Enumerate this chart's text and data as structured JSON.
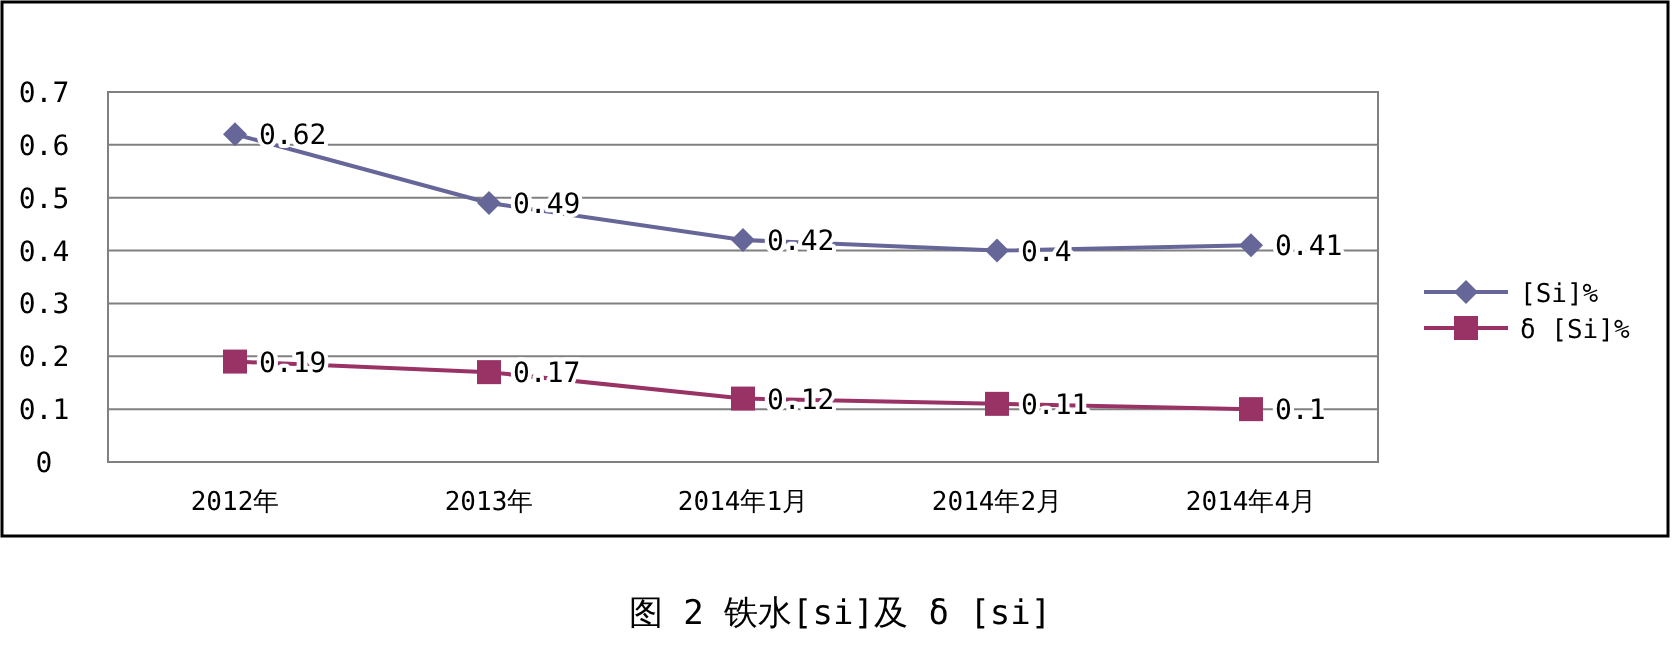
{
  "chart_data": {
    "type": "line",
    "categories": [
      "2012年",
      "2013年",
      "2014年1月",
      "2014年2月",
      "2014年4月"
    ],
    "series": [
      {
        "name": "[Si]%",
        "color": "#666699",
        "marker": "diamond",
        "values": [
          0.62,
          0.49,
          0.42,
          0.4,
          0.41
        ]
      },
      {
        "name": "δ [Si]%",
        "color": "#993366",
        "marker": "square",
        "values": [
          0.19,
          0.17,
          0.12,
          0.11,
          0.1
        ]
      }
    ],
    "data_labels": true,
    "ylim": [
      0,
      0.7
    ],
    "yticks": [
      0,
      0.1,
      0.2,
      0.3,
      0.4,
      0.5,
      0.6,
      0.7
    ],
    "grid": "y",
    "legend": "right",
    "annotations": [
      "图 2 铁水[si]及 δ [si]"
    ]
  }
}
